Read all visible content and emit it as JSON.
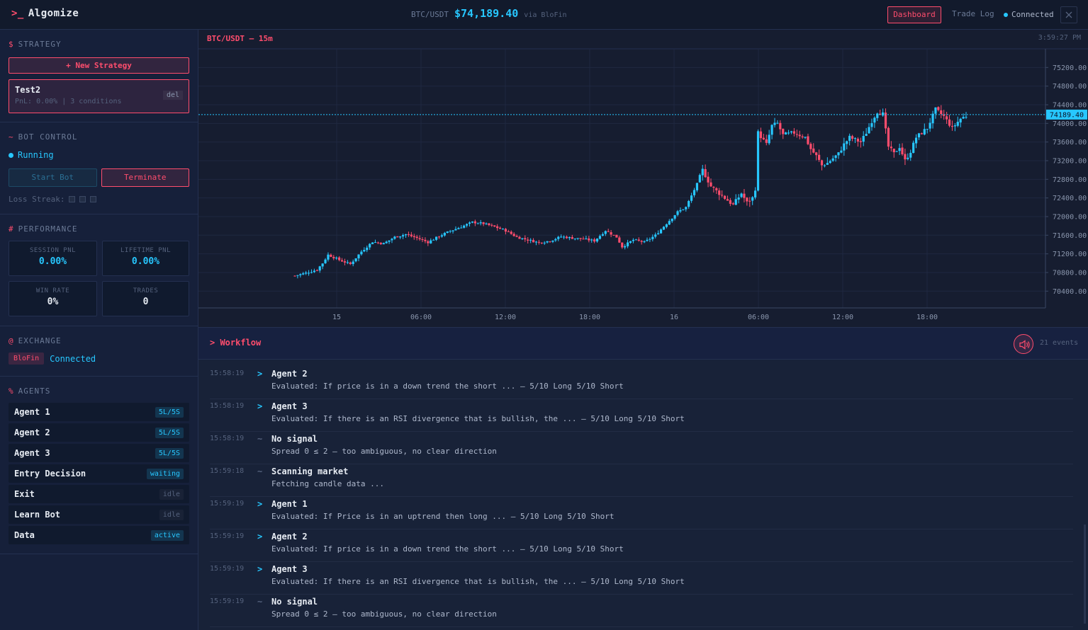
{
  "header": {
    "logo_prompt": ">_",
    "logo_text": "Algomize",
    "pair": "BTC/USDT",
    "price": "$74,189.40",
    "via": "via BloFin",
    "dashboard_label": "Dashboard",
    "tradelog_label": "Trade Log",
    "connection_status": "Connected",
    "close_icon": "close-icon"
  },
  "sidebar": {
    "strategy": {
      "symbol": "$",
      "title": "STRATEGY",
      "new_label": "+ New Strategy",
      "card_name": "Test2",
      "card_meta": "PnL: 0.00% | 3 conditions",
      "del_label": "del"
    },
    "bot": {
      "symbol": "~",
      "title": "BOT CONTROL",
      "status": "Running",
      "start_label": "Start Bot",
      "terminate_label": "Terminate",
      "loss_label": "Loss Streak:"
    },
    "performance": {
      "symbol": "#",
      "title": "PERFORMANCE",
      "session_label": "SESSION PNL",
      "session_value": "0.00%",
      "lifetime_label": "LIFETIME PNL",
      "lifetime_value": "0.00%",
      "winrate_label": "WIN RATE",
      "winrate_value": "0%",
      "trades_label": "TRADES",
      "trades_value": "0"
    },
    "exchange": {
      "symbol": "@",
      "title": "EXCHANGE",
      "name": "BloFin",
      "status": "Connected"
    },
    "agents": {
      "symbol": "%",
      "title": "AGENTS",
      "items": [
        {
          "name": "Agent 1",
          "tag": "5L/5S",
          "style": "cyan"
        },
        {
          "name": "Agent 2",
          "tag": "5L/5S",
          "style": "cyan"
        },
        {
          "name": "Agent 3",
          "tag": "5L/5S",
          "style": "cyan"
        },
        {
          "name": "Entry Decision",
          "tag": "waiting",
          "style": "cyan"
        },
        {
          "name": "Exit",
          "tag": "idle",
          "style": "idle"
        },
        {
          "name": "Learn Bot",
          "tag": "idle",
          "style": "idle"
        },
        {
          "name": "Data",
          "tag": "active",
          "style": "cyan"
        }
      ]
    }
  },
  "chart": {
    "title": "BTC/USDT — 15m",
    "time": "3:59:27 PM",
    "last_price_label": "74189.40"
  },
  "chart_data": {
    "type": "candlestick",
    "title": "BTC/USDT — 15m",
    "y_ticks": [
      "75200.00",
      "74800.00",
      "74400.00",
      "74000.00",
      "73600.00",
      "73200.00",
      "72800.00",
      "72400.00",
      "72000.00",
      "71600.00",
      "71200.00",
      "70800.00",
      "70400.00"
    ],
    "x_ticks": [
      "15",
      "06:00",
      "12:00",
      "18:00",
      "16",
      "06:00",
      "12:00",
      "18:00"
    ],
    "ylim": [
      70040,
      75600
    ],
    "last_price": 74189.4,
    "colors": {
      "up": "#27c7ff",
      "down": "#ff4d6d",
      "last_line": "#27c7ff"
    },
    "close_path": [
      [
        0,
        70730
      ],
      [
        4,
        70790
      ],
      [
        8,
        70860
      ],
      [
        10,
        71000
      ],
      [
        12,
        71180
      ],
      [
        16,
        71070
      ],
      [
        20,
        70980
      ],
      [
        24,
        71250
      ],
      [
        28,
        71460
      ],
      [
        32,
        71420
      ],
      [
        36,
        71560
      ],
      [
        40,
        71620
      ],
      [
        44,
        71540
      ],
      [
        48,
        71450
      ],
      [
        52,
        71580
      ],
      [
        56,
        71690
      ],
      [
        60,
        71780
      ],
      [
        64,
        71880
      ],
      [
        68,
        71850
      ],
      [
        72,
        71780
      ],
      [
        76,
        71700
      ],
      [
        80,
        71560
      ],
      [
        84,
        71500
      ],
      [
        88,
        71440
      ],
      [
        92,
        71480
      ],
      [
        96,
        71570
      ],
      [
        100,
        71540
      ],
      [
        104,
        71520
      ],
      [
        108,
        71480
      ],
      [
        112,
        71700
      ],
      [
        116,
        71560
      ],
      [
        118,
        71350
      ],
      [
        122,
        71500
      ],
      [
        126,
        71450
      ],
      [
        130,
        71600
      ],
      [
        134,
        71850
      ],
      [
        138,
        72100
      ],
      [
        141,
        72200
      ],
      [
        143,
        72450
      ],
      [
        145,
        72700
      ],
      [
        147,
        73000
      ],
      [
        150,
        72650
      ],
      [
        154,
        72450
      ],
      [
        158,
        72250
      ],
      [
        161,
        72500
      ],
      [
        163,
        72300
      ],
      [
        165,
        72400
      ],
      [
        166,
        72600
      ],
      [
        167,
        73800
      ],
      [
        170,
        73550
      ],
      [
        172,
        73950
      ],
      [
        174,
        74000
      ],
      [
        176,
        73750
      ],
      [
        180,
        73800
      ],
      [
        184,
        73700
      ],
      [
        186,
        73450
      ],
      [
        188,
        73300
      ],
      [
        190,
        73100
      ],
      [
        192,
        73150
      ],
      [
        194,
        73250
      ],
      [
        196,
        73350
      ],
      [
        198,
        73550
      ],
      [
        200,
        73700
      ],
      [
        204,
        73600
      ],
      [
        206,
        73800
      ],
      [
        208,
        74050
      ],
      [
        210,
        74250
      ],
      [
        212,
        74200
      ],
      [
        214,
        73500
      ],
      [
        216,
        73350
      ],
      [
        218,
        73500
      ],
      [
        220,
        73200
      ],
      [
        222,
        73400
      ],
      [
        224,
        73700
      ],
      [
        228,
        73900
      ],
      [
        231,
        74300
      ],
      [
        234,
        74150
      ],
      [
        237,
        73900
      ],
      [
        240,
        74100
      ],
      [
        243,
        74190
      ]
    ]
  },
  "workflow": {
    "title": "> Workflow",
    "sound_icon": "speaker-icon",
    "count": "21 events",
    "events": [
      {
        "time": "15:58:19",
        "icon": ">",
        "kind": "arrow",
        "title": "Agent 2",
        "desc": "Evaluated: If price is in a down trend the short ... — 5/10 Long 5/10 Short"
      },
      {
        "time": "15:58:19",
        "icon": ">",
        "kind": "arrow",
        "title": "Agent 3",
        "desc": "Evaluated: If there is an RSI divergence that is bullish, the ... — 5/10 Long 5/10 Short"
      },
      {
        "time": "15:58:19",
        "icon": "~",
        "kind": "tilde",
        "title": "No signal",
        "desc": "Spread 0 ≤ 2 — too ambiguous, no clear direction"
      },
      {
        "time": "15:59:18",
        "icon": "~",
        "kind": "tilde",
        "title": "Scanning market",
        "desc": "Fetching candle data ..."
      },
      {
        "time": "15:59:19",
        "icon": ">",
        "kind": "arrow",
        "title": "Agent 1",
        "desc": "Evaluated: If Price is in an uptrend then long ... — 5/10 Long 5/10 Short"
      },
      {
        "time": "15:59:19",
        "icon": ">",
        "kind": "arrow",
        "title": "Agent 2",
        "desc": "Evaluated: If price is in a down trend the short ... — 5/10 Long 5/10 Short"
      },
      {
        "time": "15:59:19",
        "icon": ">",
        "kind": "arrow",
        "title": "Agent 3",
        "desc": "Evaluated: If there is an RSI divergence that is bullish, the ... — 5/10 Long 5/10 Short"
      },
      {
        "time": "15:59:19",
        "icon": "~",
        "kind": "tilde",
        "title": "No signal",
        "desc": "Spread 0 ≤ 2 — too ambiguous, no clear direction"
      }
    ]
  }
}
